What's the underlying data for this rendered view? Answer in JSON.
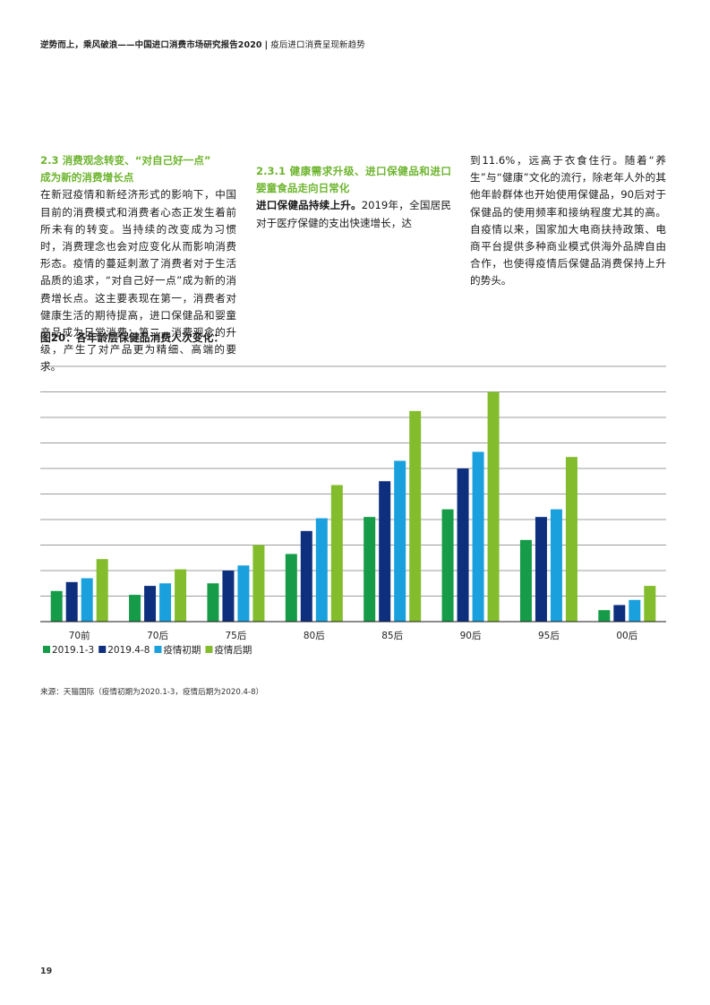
{
  "header": {
    "title": "逆势而上，乘风破浪——中国进口消费市场研究报告2020",
    "separator": "|",
    "subtitle": "疫后进口消费呈现新趋势"
  },
  "section": {
    "title_line1": "2.3 消费观念转变、“对自己好一点”",
    "title_line2": "成为新的消费增长点",
    "para1": "在新冠疫情和新经济形式的影响下，中国目前的消费模式和消费者心态正发生着前所未有的转变。当持续的改变成为习惯时，消费理念也会对应变化从而影响消费形态。疫情的蔓延刺激了消费者对于生活品质的追求，“对自己好一点”成为新的消费增长点。这主要表现在第一，消费者对健康生活的期待提高，进口保健品和婴童产品成为日常消费；第二，消费观念的升级，产生了对产品更为精细、高端的要求。"
  },
  "subsection": {
    "title": "2.3.1 健康需求升级、进口保健品和进口婴童食品走向日常化",
    "lead": "进口保健品持续上升。",
    "para_part1": "2019年，全国居民对于医疗保健的支出快速增长，达",
    "para_part2": "到11.6%，远高于衣食住行。随着“养生”与“健康”文化的流行，除老年人外的其他年龄群体也开始使用保健品，90后对于保健品的使用频率和接纳程度尤其的高。自疫情以来，国家加大电商扶持政策、电商平台提供多种商业模式供海外品牌自由合作，也使得疫情后保健品消费保持上升的势头。"
  },
  "figure": {
    "title": "图20：各年龄层保健品消费人次变化："
  },
  "chart_data": {
    "type": "bar",
    "title": "图20：各年龄层保健品消费人次变化：",
    "categories": [
      "70前",
      "70后",
      "75后",
      "80后",
      "85后",
      "90后",
      "95后",
      "00后"
    ],
    "series": [
      {
        "name": "2019.1-3",
        "color": "#169b48",
        "values": [
          1.2,
          1.05,
          1.5,
          2.65,
          4.1,
          4.4,
          3.2,
          0.45
        ]
      },
      {
        "name": "2019.4-8",
        "color": "#0d2f7e",
        "values": [
          1.55,
          1.4,
          2.0,
          3.55,
          5.5,
          6.0,
          4.1,
          0.65
        ]
      },
      {
        "name": "疫情初期",
        "color": "#1aa0dc",
        "values": [
          1.7,
          1.5,
          2.2,
          4.05,
          6.3,
          6.65,
          4.4,
          0.85
        ]
      },
      {
        "name": "疫情后期",
        "color": "#83bd2d",
        "values": [
          2.45,
          2.05,
          3.0,
          5.35,
          8.25,
          9.0,
          6.45,
          1.4
        ]
      }
    ],
    "ylim": [
      0,
      10
    ],
    "grid_step": 1,
    "grid": true,
    "y_tick_labels_shown": false,
    "legend": "bottom-left",
    "xlabel": "",
    "ylabel": ""
  },
  "source": "来源：天猫国际（疫情初期为2020.1-3，疫情后期为2020.4-8）",
  "page_number": "19"
}
